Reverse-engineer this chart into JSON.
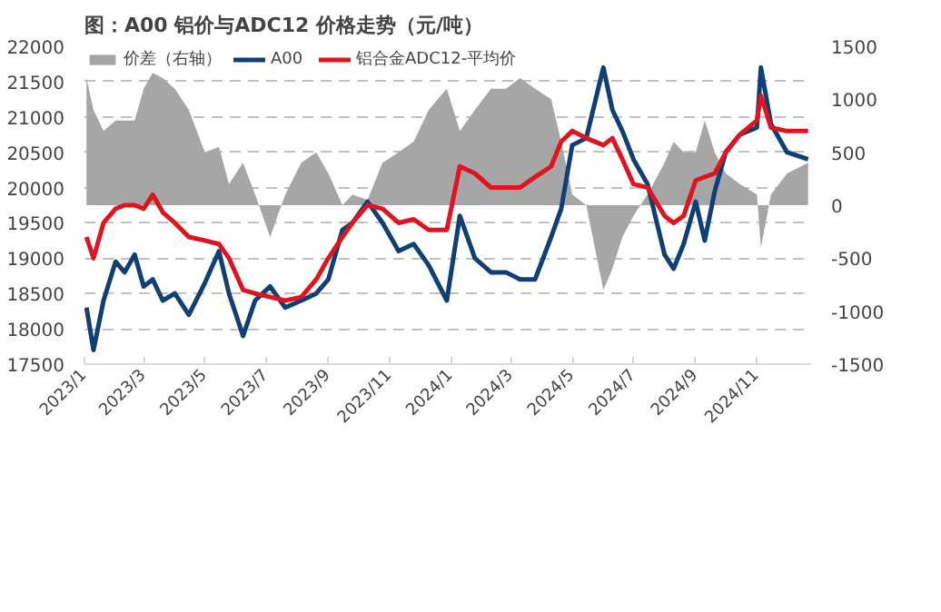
{
  "chart_data": {
    "type": "line",
    "title": "图：A00 铝价与ADC12 价格走势（元/吨）",
    "x": [
      "2023-01-03",
      "2023-01-10",
      "2023-01-20",
      "2023-02-01",
      "2023-02-10",
      "2023-02-20",
      "2023-03-01",
      "2023-03-10",
      "2023-03-20",
      "2023-04-01",
      "2023-04-15",
      "2023-05-01",
      "2023-05-15",
      "2023-05-25",
      "2023-06-08",
      "2023-06-20",
      "2023-07-05",
      "2023-07-20",
      "2023-08-05",
      "2023-08-20",
      "2023-09-01",
      "2023-09-15",
      "2023-09-25",
      "2023-10-10",
      "2023-10-25",
      "2023-11-10",
      "2023-11-25",
      "2023-12-10",
      "2023-12-28",
      "2024-01-10",
      "2024-01-25",
      "2024-02-10",
      "2024-02-25",
      "2024-03-10",
      "2024-03-25",
      "2024-04-10",
      "2024-04-20",
      "2024-05-01",
      "2024-05-15",
      "2024-06-01",
      "2024-06-10",
      "2024-06-20",
      "2024-07-01",
      "2024-07-15",
      "2024-08-01",
      "2024-08-10",
      "2024-08-20",
      "2024-09-01",
      "2024-09-10",
      "2024-09-20",
      "2024-10-01",
      "2024-10-15",
      "2024-11-01",
      "2024-11-05",
      "2024-11-15",
      "2024-12-01",
      "2024-12-22"
    ],
    "series": [
      {
        "name": "价差（右轴）",
        "type": "area",
        "axis": "y2",
        "color": "#a6a6a6",
        "values": [
          1200,
          900,
          700,
          800,
          800,
          800,
          1100,
          1250,
          1200,
          1100,
          900,
          500,
          550,
          200,
          400,
          100,
          -300,
          100,
          400,
          500,
          300,
          0,
          100,
          50,
          400,
          500,
          600,
          900,
          1100,
          700,
          900,
          1100,
          1100,
          1200,
          1100,
          1000,
          600,
          100,
          0,
          -800,
          -600,
          -300,
          -100,
          100,
          400,
          600,
          500,
          500,
          800,
          500,
          300,
          200,
          100,
          -400,
          100,
          300,
          400
        ]
      },
      {
        "name": "A00",
        "color": "#0f3f74",
        "values": [
          18300,
          17700,
          18400,
          18950,
          18800,
          19050,
          18600,
          18700,
          18400,
          18500,
          18200,
          18650,
          19100,
          18500,
          17900,
          18400,
          18600,
          18300,
          18400,
          18500,
          18700,
          19400,
          19500,
          19800,
          19500,
          19100,
          19200,
          18900,
          18400,
          19600,
          19000,
          18800,
          18800,
          18700,
          18700,
          19300,
          19700,
          20600,
          20700,
          21700,
          21100,
          20800,
          20400,
          20050,
          19050,
          18850,
          19200,
          19800,
          19250,
          19950,
          20500,
          20750,
          20850,
          21700,
          20900,
          20500,
          20400
        ]
      },
      {
        "name": "铝合金ADC12-平均价",
        "color": "#e0141e",
        "values": [
          19300,
          19000,
          19500,
          19700,
          19750,
          19750,
          19700,
          19900,
          19650,
          19500,
          19300,
          19250,
          19200,
          19000,
          18550,
          18500,
          18450,
          18400,
          18450,
          18700,
          19000,
          19300,
          19500,
          19750,
          19700,
          19500,
          19550,
          19400,
          19400,
          20300,
          20200,
          20000,
          20000,
          20000,
          20150,
          20300,
          20650,
          20800,
          20700,
          20600,
          20700,
          20400,
          20050,
          20000,
          19600,
          19500,
          19600,
          20100,
          20150,
          20200,
          20500,
          20750,
          20950,
          21300,
          20850,
          20800,
          20800
        ]
      }
    ],
    "xlim": [
      "2023-01-01",
      "2024-12-25"
    ],
    "xticks": [
      {
        "value": "2023-01-01",
        "label": "2023/1"
      },
      {
        "value": "2023-03-01",
        "label": "2023/3"
      },
      {
        "value": "2023-05-01",
        "label": "2023/5"
      },
      {
        "value": "2023-07-01",
        "label": "2023/7"
      },
      {
        "value": "2023-09-01",
        "label": "2023/9"
      },
      {
        "value": "2023-11-01",
        "label": "2023/11"
      },
      {
        "value": "2024-01-01",
        "label": "2024/1"
      },
      {
        "value": "2024-03-01",
        "label": "2024/3"
      },
      {
        "value": "2024-05-01",
        "label": "2024/5"
      },
      {
        "value": "2024-07-01",
        "label": "2024/7"
      },
      {
        "value": "2024-09-01",
        "label": "2024/9"
      },
      {
        "value": "2024-11-01",
        "label": "2024/11"
      }
    ],
    "ylim": [
      17500,
      22000
    ],
    "yticks": [
      17500,
      18000,
      18500,
      19000,
      19500,
      20000,
      20500,
      21000,
      21500,
      22000
    ],
    "y2lim": [
      -1500,
      1500
    ],
    "y2ticks": [
      -1500,
      -1000,
      -500,
      0,
      500,
      1000,
      1500
    ],
    "grid": "y",
    "legend": "top left",
    "line_style": "solid",
    "marker": "none"
  }
}
